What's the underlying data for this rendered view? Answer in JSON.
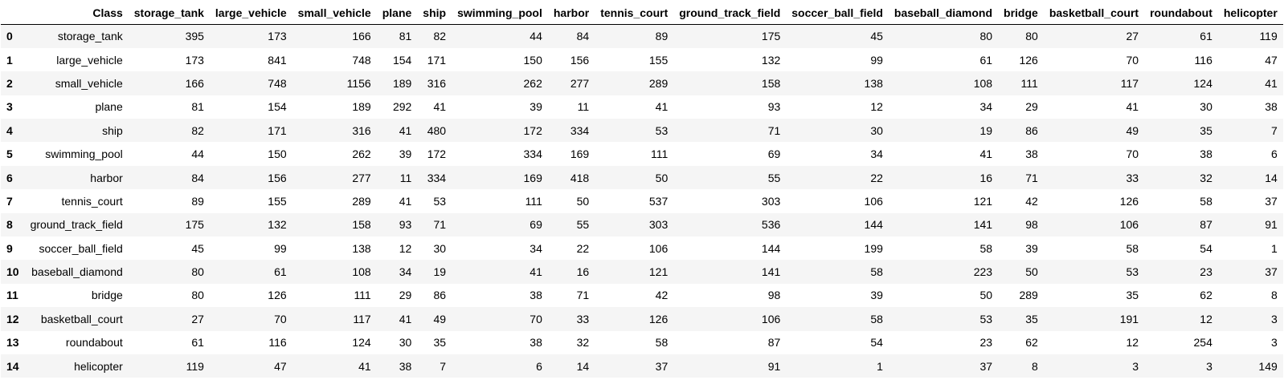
{
  "table": {
    "header_index_label": "",
    "columns": [
      "Class",
      "storage_tank",
      "large_vehicle",
      "small_vehicle",
      "plane",
      "ship",
      "swimming_pool",
      "harbor",
      "tennis_court",
      "ground_track_field",
      "soccer_ball_field",
      "baseball_diamond",
      "bridge",
      "basketball_court",
      "roundabout",
      "helicopter"
    ],
    "rows": [
      {
        "index": "0",
        "cells": [
          "storage_tank",
          "395",
          "173",
          "166",
          "81",
          "82",
          "44",
          "84",
          "89",
          "175",
          "45",
          "80",
          "80",
          "27",
          "61",
          "119"
        ]
      },
      {
        "index": "1",
        "cells": [
          "large_vehicle",
          "173",
          "841",
          "748",
          "154",
          "171",
          "150",
          "156",
          "155",
          "132",
          "99",
          "61",
          "126",
          "70",
          "116",
          "47"
        ]
      },
      {
        "index": "2",
        "cells": [
          "small_vehicle",
          "166",
          "748",
          "1156",
          "189",
          "316",
          "262",
          "277",
          "289",
          "158",
          "138",
          "108",
          "111",
          "117",
          "124",
          "41"
        ]
      },
      {
        "index": "3",
        "cells": [
          "plane",
          "81",
          "154",
          "189",
          "292",
          "41",
          "39",
          "11",
          "41",
          "93",
          "12",
          "34",
          "29",
          "41",
          "30",
          "38"
        ]
      },
      {
        "index": "4",
        "cells": [
          "ship",
          "82",
          "171",
          "316",
          "41",
          "480",
          "172",
          "334",
          "53",
          "71",
          "30",
          "19",
          "86",
          "49",
          "35",
          "7"
        ]
      },
      {
        "index": "5",
        "cells": [
          "swimming_pool",
          "44",
          "150",
          "262",
          "39",
          "172",
          "334",
          "169",
          "111",
          "69",
          "34",
          "41",
          "38",
          "70",
          "38",
          "6"
        ]
      },
      {
        "index": "6",
        "cells": [
          "harbor",
          "84",
          "156",
          "277",
          "11",
          "334",
          "169",
          "418",
          "50",
          "55",
          "22",
          "16",
          "71",
          "33",
          "32",
          "14"
        ]
      },
      {
        "index": "7",
        "cells": [
          "tennis_court",
          "89",
          "155",
          "289",
          "41",
          "53",
          "111",
          "50",
          "537",
          "303",
          "106",
          "121",
          "42",
          "126",
          "58",
          "37"
        ]
      },
      {
        "index": "8",
        "cells": [
          "ground_track_field",
          "175",
          "132",
          "158",
          "93",
          "71",
          "69",
          "55",
          "303",
          "536",
          "144",
          "141",
          "98",
          "106",
          "87",
          "91"
        ]
      },
      {
        "index": "9",
        "cells": [
          "soccer_ball_field",
          "45",
          "99",
          "138",
          "12",
          "30",
          "34",
          "22",
          "106",
          "144",
          "199",
          "58",
          "39",
          "58",
          "54",
          "1"
        ]
      },
      {
        "index": "10",
        "cells": [
          "baseball_diamond",
          "80",
          "61",
          "108",
          "34",
          "19",
          "41",
          "16",
          "121",
          "141",
          "58",
          "223",
          "50",
          "53",
          "23",
          "37"
        ]
      },
      {
        "index": "11",
        "cells": [
          "bridge",
          "80",
          "126",
          "111",
          "29",
          "86",
          "38",
          "71",
          "42",
          "98",
          "39",
          "50",
          "289",
          "35",
          "62",
          "8"
        ]
      },
      {
        "index": "12",
        "cells": [
          "basketball_court",
          "27",
          "70",
          "117",
          "41",
          "49",
          "70",
          "33",
          "126",
          "106",
          "58",
          "53",
          "35",
          "191",
          "12",
          "3"
        ]
      },
      {
        "index": "13",
        "cells": [
          "roundabout",
          "61",
          "116",
          "124",
          "30",
          "35",
          "38",
          "32",
          "58",
          "87",
          "54",
          "23",
          "62",
          "12",
          "254",
          "3"
        ]
      },
      {
        "index": "14",
        "cells": [
          "helicopter",
          "119",
          "47",
          "41",
          "38",
          "7",
          "6",
          "14",
          "37",
          "91",
          "1",
          "37",
          "8",
          "3",
          "3",
          "149"
        ]
      }
    ]
  }
}
